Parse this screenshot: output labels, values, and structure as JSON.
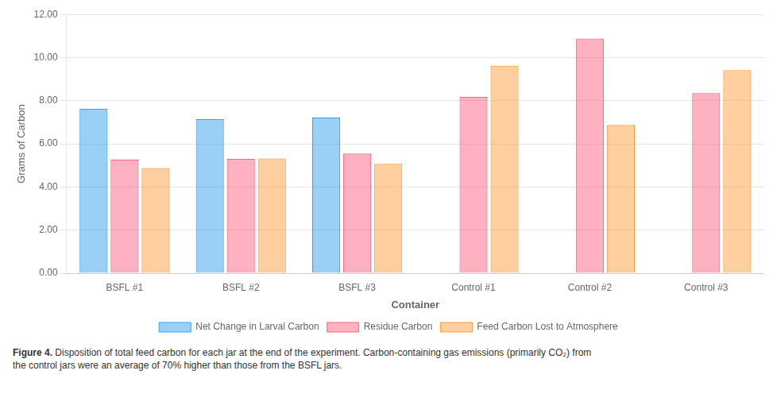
{
  "chart_data": {
    "type": "bar",
    "categories": [
      "BSFL #1",
      "BSFL #2",
      "BSFL #3",
      "Control #1",
      "Control #2",
      "Control #3"
    ],
    "series": [
      {
        "name": "Net Change in Larval Carbon",
        "values": [
          7.62,
          7.15,
          7.22,
          0,
          0,
          0
        ]
      },
      {
        "name": "Residue Carbon",
        "values": [
          5.27,
          5.3,
          5.55,
          8.18,
          10.88,
          8.35
        ]
      },
      {
        "name": "Feed Carbon Lost to Atmosphere",
        "values": [
          4.88,
          5.32,
          5.07,
          9.62,
          6.88,
          9.42
        ]
      }
    ],
    "xlabel": "Container",
    "ylabel": "Grams of Carbon",
    "ylim": [
      0,
      12.0
    ],
    "yticks": [
      {
        "value": 0,
        "label": "0.00"
      },
      {
        "value": 2,
        "label": "2.00"
      },
      {
        "value": 4,
        "label": "4.00"
      },
      {
        "value": 6,
        "label": "6.00"
      },
      {
        "value": 8,
        "label": "8.00"
      },
      {
        "value": 10,
        "label": "10.00"
      },
      {
        "value": 12,
        "label": "12.00"
      }
    ],
    "grid": true,
    "legend": "bottom",
    "annotations": [
      "Figure 4.",
      "Disposition of total feed carbon for each jar at the end of the experiment. Carbon-containing gas emissions (primarily CO₂) from\nthe control jars were an average of 70% higher than those from the BSFL jars."
    ]
  }
}
